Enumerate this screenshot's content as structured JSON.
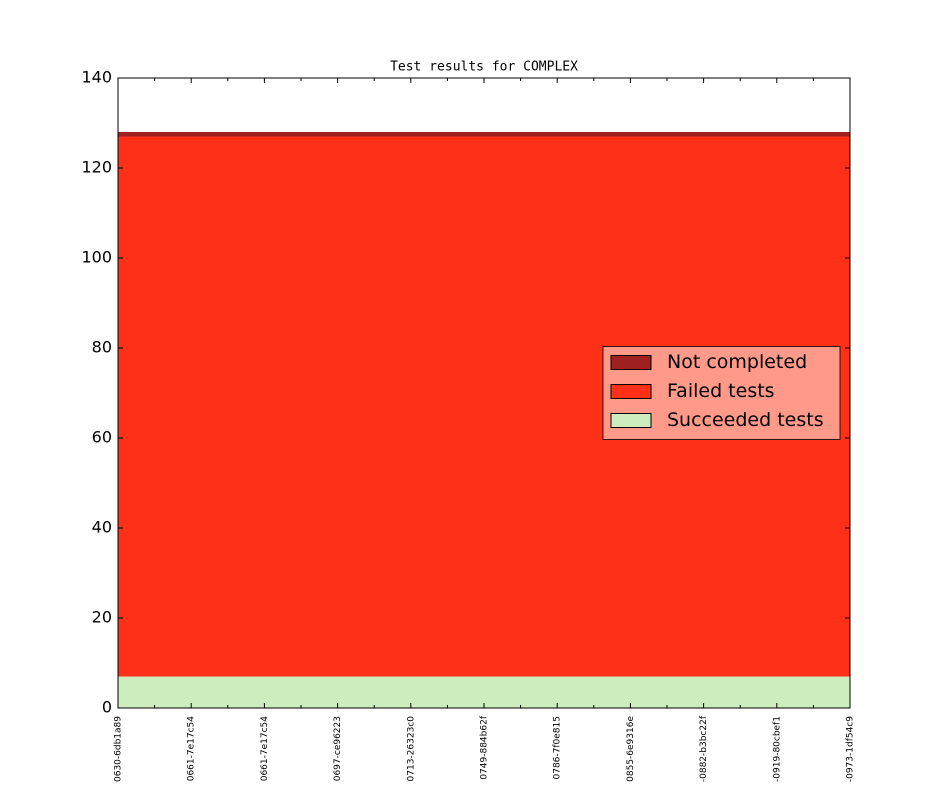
{
  "chart_data": {
    "type": "stackplot",
    "title": "Test results for COMPLEX",
    "categories": [
      "0630-6db1a89",
      "0661-7e17c54",
      "0661-7e17c54",
      "0697-ce96223",
      "0713-26323c0",
      "0749-884b62f",
      "0786-7f0e815",
      "0855-6e9316e",
      "-0882-b3bc22f",
      "-0919-80cbef1",
      "-0973-1df54c9"
    ],
    "series": [
      {
        "name": "Succeeded tests",
        "color": "#cdedbe",
        "values": [
          7,
          7,
          7,
          7,
          7,
          7,
          7,
          7,
          7,
          7,
          7
        ]
      },
      {
        "name": "Failed tests",
        "color": "#ff3018",
        "values": [
          120,
          120,
          120,
          120,
          120,
          120,
          120,
          120,
          120,
          120,
          120
        ]
      },
      {
        "name": "Not completed",
        "color": "#9e2020",
        "values": [
          1,
          1,
          1,
          1,
          1,
          1,
          1,
          1,
          1,
          1,
          1
        ]
      }
    ],
    "ylim": [
      0,
      140
    ],
    "yticks": [
      0,
      20,
      40,
      60,
      80,
      100,
      120,
      140
    ],
    "legend": "center right",
    "legend_facecolor": "#ff9a8a"
  }
}
